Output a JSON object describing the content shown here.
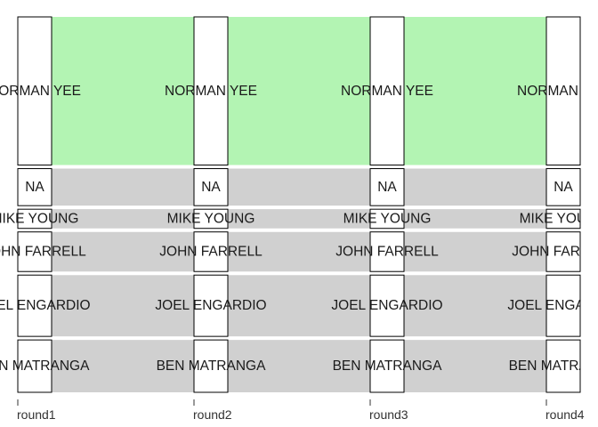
{
  "chart_data": {
    "type": "alluvial",
    "axes": [
      "round1",
      "round2",
      "round3",
      "round4"
    ],
    "strata": [
      {
        "name": "NORMAN YEE",
        "values": [
          116,
          116,
          116,
          116
        ]
      },
      {
        "name": "NA",
        "values": [
          29,
          29,
          29,
          29
        ]
      },
      {
        "name": "MIKE YOUNG",
        "values": [
          15,
          15,
          15,
          15
        ]
      },
      {
        "name": "JOHN FARRELL",
        "values": [
          31,
          31,
          31,
          31
        ]
      },
      {
        "name": "JOEL ENGARDIO",
        "values": [
          48,
          48,
          48,
          48
        ]
      },
      {
        "name": "BEN MATRANGA",
        "values": [
          41,
          41,
          41,
          41
        ]
      }
    ],
    "flows": [
      {
        "from": "NORMAN YEE",
        "to": "NORMAN YEE",
        "value": 116,
        "color": "#b3f4b3"
      },
      {
        "from": "NA",
        "to": "NA",
        "value": 29,
        "color": "#d0d0d0"
      },
      {
        "from": "MIKE YOUNG",
        "to": "MIKE YOUNG",
        "value": 15,
        "color": "#d0d0d0"
      },
      {
        "from": "JOHN FARRELL",
        "to": "JOHN FARRELL",
        "value": 31,
        "color": "#d0d0d0"
      },
      {
        "from": "JOEL ENGARDIO",
        "to": "JOEL ENGARDIO",
        "value": 48,
        "color": "#d0d0d0"
      },
      {
        "from": "BEN MATRANGA",
        "to": "BEN MATRANGA",
        "value": 41,
        "color": "#d0d0d0"
      }
    ],
    "colors": {
      "highlight": "#b3f4b3",
      "other": "#d0d0d0",
      "stratum_fill": "#ffffff",
      "stratum_border": "#000000"
    },
    "legend": "none",
    "grid": false
  }
}
